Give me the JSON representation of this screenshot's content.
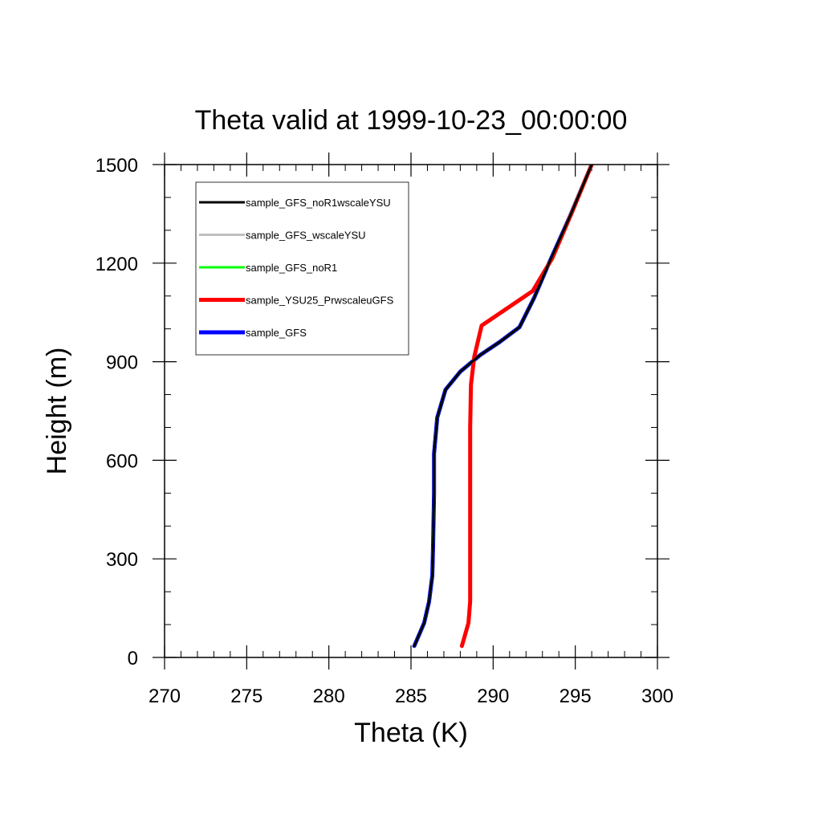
{
  "chart_data": {
    "type": "line",
    "title": "Theta valid at 1999-10-23_00:00:00",
    "xlabel": "Theta (K)",
    "ylabel": "Height (m)",
    "xlim": [
      270,
      300
    ],
    "ylim": [
      0,
      1500
    ],
    "xticks": [
      270,
      275,
      280,
      285,
      290,
      295,
      300
    ],
    "yticks": [
      0,
      300,
      600,
      900,
      1200,
      1500
    ],
    "xtick_labels": [
      "270",
      "275",
      "280",
      "285",
      "290",
      "295",
      "300"
    ],
    "ytick_labels": [
      "0",
      "300",
      "600",
      "900",
      "1200",
      "1500"
    ],
    "x_minor_step": 1,
    "y_minor_step": 100,
    "grid": false,
    "legend_position": "top-left",
    "series": [
      {
        "name": "sample_GFS_noR1wscaleYSU",
        "color": "#000000",
        "line_width": 3,
        "points": [
          [
            285.2,
            35
          ],
          [
            285.8,
            105
          ],
          [
            286.1,
            170
          ],
          [
            286.3,
            250
          ],
          [
            286.35,
            350
          ],
          [
            286.4,
            500
          ],
          [
            286.4,
            620
          ],
          [
            286.6,
            730
          ],
          [
            287.1,
            815
          ],
          [
            288.0,
            870
          ],
          [
            289.2,
            920
          ],
          [
            290.4,
            960
          ],
          [
            291.6,
            1005
          ],
          [
            292.5,
            1095
          ],
          [
            293.4,
            1200
          ],
          [
            294.7,
            1345
          ],
          [
            296.0,
            1500
          ]
        ]
      },
      {
        "name": "sample_GFS_wscaleYSU",
        "color": "#bfbfbf",
        "line_width": 3,
        "points": [
          [
            285.2,
            35
          ],
          [
            285.8,
            105
          ],
          [
            286.1,
            170
          ],
          [
            286.3,
            250
          ],
          [
            286.35,
            350
          ],
          [
            286.4,
            500
          ],
          [
            286.4,
            620
          ],
          [
            286.6,
            730
          ],
          [
            287.1,
            815
          ],
          [
            288.0,
            870
          ],
          [
            289.2,
            920
          ],
          [
            290.4,
            960
          ],
          [
            291.6,
            1005
          ],
          [
            292.5,
            1095
          ],
          [
            293.4,
            1200
          ],
          [
            294.7,
            1345
          ],
          [
            296.0,
            1500
          ]
        ]
      },
      {
        "name": "sample_GFS_noR1",
        "color": "#00ff00",
        "line_width": 3,
        "points": [
          [
            285.2,
            35
          ],
          [
            285.8,
            105
          ],
          [
            286.1,
            170
          ],
          [
            286.3,
            250
          ],
          [
            286.35,
            350
          ],
          [
            286.4,
            500
          ],
          [
            286.4,
            620
          ],
          [
            286.6,
            730
          ],
          [
            287.1,
            815
          ],
          [
            288.0,
            870
          ],
          [
            289.2,
            920
          ],
          [
            290.4,
            960
          ],
          [
            291.6,
            1005
          ],
          [
            292.5,
            1095
          ],
          [
            293.4,
            1200
          ],
          [
            294.7,
            1345
          ],
          [
            296.0,
            1500
          ]
        ]
      },
      {
        "name": "sample_YSU25_PrwscaleuGFS",
        "color": "#ff0000",
        "line_width": 5,
        "points": [
          [
            288.1,
            35
          ],
          [
            288.5,
            105
          ],
          [
            288.6,
            170
          ],
          [
            288.6,
            300
          ],
          [
            288.6,
            500
          ],
          [
            288.6,
            700
          ],
          [
            288.65,
            830
          ],
          [
            288.85,
            915
          ],
          [
            289.3,
            1010
          ],
          [
            292.4,
            1115
          ],
          [
            293.6,
            1215
          ],
          [
            294.8,
            1355
          ],
          [
            296.0,
            1500
          ]
        ]
      },
      {
        "name": "sample_GFS",
        "color": "#0000ff",
        "line_width": 5,
        "points": [
          [
            285.2,
            35
          ],
          [
            285.8,
            105
          ],
          [
            286.1,
            170
          ],
          [
            286.3,
            250
          ],
          [
            286.35,
            350
          ],
          [
            286.4,
            500
          ],
          [
            286.4,
            620
          ],
          [
            286.6,
            730
          ],
          [
            287.1,
            815
          ],
          [
            288.0,
            870
          ],
          [
            289.2,
            920
          ],
          [
            290.4,
            960
          ],
          [
            291.6,
            1005
          ],
          [
            292.5,
            1095
          ],
          [
            293.4,
            1200
          ],
          [
            294.7,
            1345
          ],
          [
            296.0,
            1500
          ]
        ]
      }
    ],
    "draw_order": [
      4,
      3,
      1,
      2,
      0
    ]
  }
}
